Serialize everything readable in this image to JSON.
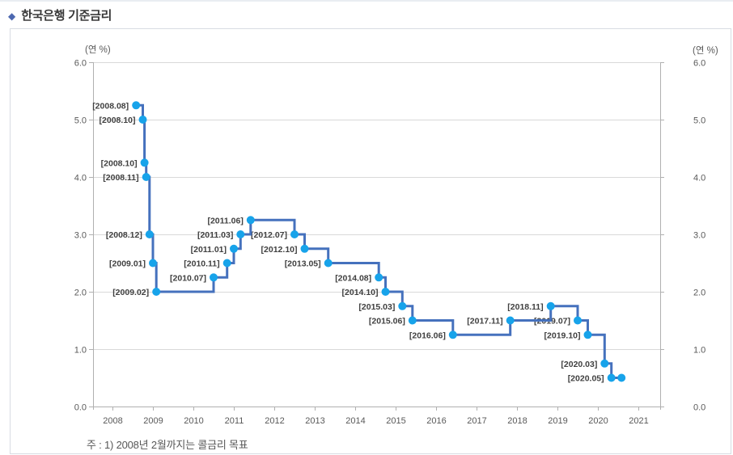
{
  "header": {
    "bullet": "◆",
    "title": "한국은행 기준금리"
  },
  "axes": {
    "left_unit": "(연 %)",
    "right_unit": "(연 %)"
  },
  "footnote": "주 : 1) 2008년 2월까지는 콜금리 목표",
  "chart_data": {
    "type": "line",
    "subtype": "step-after",
    "title": "한국은행 기준금리",
    "ylabel": "(연 %)",
    "ylabel_right": "(연 %)",
    "ylim": [
      0.0,
      6.0
    ],
    "xlim": [
      2007.52,
      2021.54
    ],
    "grid": "horizontal",
    "legend": "none",
    "y_ticks": [
      {
        "value": 0,
        "label": "0.0"
      },
      {
        "value": 1,
        "label": "1.0"
      },
      {
        "value": 2,
        "label": "2.0"
      },
      {
        "value": 3,
        "label": "3.0"
      },
      {
        "value": 4,
        "label": "4.0"
      },
      {
        "value": 5,
        "label": "5.0"
      },
      {
        "value": 6,
        "label": "6.0"
      }
    ],
    "x_ticks": [
      {
        "value": 2008,
        "label": "2008"
      },
      {
        "value": 2009,
        "label": "2009"
      },
      {
        "value": 2010,
        "label": "2010"
      },
      {
        "value": 2011,
        "label": "2011"
      },
      {
        "value": 2012,
        "label": "2012"
      },
      {
        "value": 2013,
        "label": "2013"
      },
      {
        "value": 2014,
        "label": "2014"
      },
      {
        "value": 2015,
        "label": "2015"
      },
      {
        "value": 2016,
        "label": "2016"
      },
      {
        "value": 2017,
        "label": "2017"
      },
      {
        "value": 2018,
        "label": "2018"
      },
      {
        "value": 2019,
        "label": "2019"
      },
      {
        "value": 2020,
        "label": "2020"
      },
      {
        "value": 2021,
        "label": "2021"
      }
    ],
    "points": [
      {
        "label": "[2008.08]",
        "x": 2008.583,
        "y": 5.25
      },
      {
        "label": "[2008.10]",
        "x": 2008.75,
        "y": 5.0
      },
      {
        "label": "[2008.10]",
        "x": 2008.792,
        "y": 4.25
      },
      {
        "label": "[2008.11]",
        "x": 2008.833,
        "y": 4.0
      },
      {
        "label": "[2008.12]",
        "x": 2008.917,
        "y": 3.0
      },
      {
        "label": "[2009.01]",
        "x": 2009.0,
        "y": 2.5
      },
      {
        "label": "[2009.02]",
        "x": 2009.083,
        "y": 2.0
      },
      {
        "label": "[2010.07]",
        "x": 2010.5,
        "y": 2.25
      },
      {
        "label": "[2010.11]",
        "x": 2010.833,
        "y": 2.5
      },
      {
        "label": "[2011.01]",
        "x": 2011.0,
        "y": 2.75
      },
      {
        "label": "[2011.03]",
        "x": 2011.167,
        "y": 3.0
      },
      {
        "label": "[2011.06]",
        "x": 2011.417,
        "y": 3.25
      },
      {
        "label": "[2012.07]",
        "x": 2012.5,
        "y": 3.0
      },
      {
        "label": "[2012.10]",
        "x": 2012.75,
        "y": 2.75
      },
      {
        "label": "[2013.05]",
        "x": 2013.333,
        "y": 2.5
      },
      {
        "label": "[2014.08]",
        "x": 2014.583,
        "y": 2.25
      },
      {
        "label": "[2014.10]",
        "x": 2014.75,
        "y": 2.0
      },
      {
        "label": "[2015.03]",
        "x": 2015.167,
        "y": 1.75
      },
      {
        "label": "[2015.06]",
        "x": 2015.417,
        "y": 1.5
      },
      {
        "label": "[2016.06]",
        "x": 2016.417,
        "y": 1.25
      },
      {
        "label": "[2017.11]",
        "x": 2017.833,
        "y": 1.5
      },
      {
        "label": "[2018.11]",
        "x": 2018.833,
        "y": 1.75
      },
      {
        "label": "[2019.07]",
        "x": 2019.5,
        "y": 1.5
      },
      {
        "label": "[2019.10]",
        "x": 2019.75,
        "y": 1.25
      },
      {
        "label": "[2020.03]",
        "x": 2020.167,
        "y": 0.75
      },
      {
        "label": "[2020.05]",
        "x": 2020.333,
        "y": 0.5
      }
    ],
    "line_end": {
      "x": 2020.583,
      "y": 0.5
    },
    "colors": {
      "line": "#4571bd",
      "marker": "#17a3ea",
      "grid": "#d9d9d9",
      "axis": "#b0b0b0",
      "tick_label": "#595959",
      "point_label": "#404040"
    },
    "footnote": "주 : 1) 2008년 2월까지는 콜금리 목표"
  }
}
